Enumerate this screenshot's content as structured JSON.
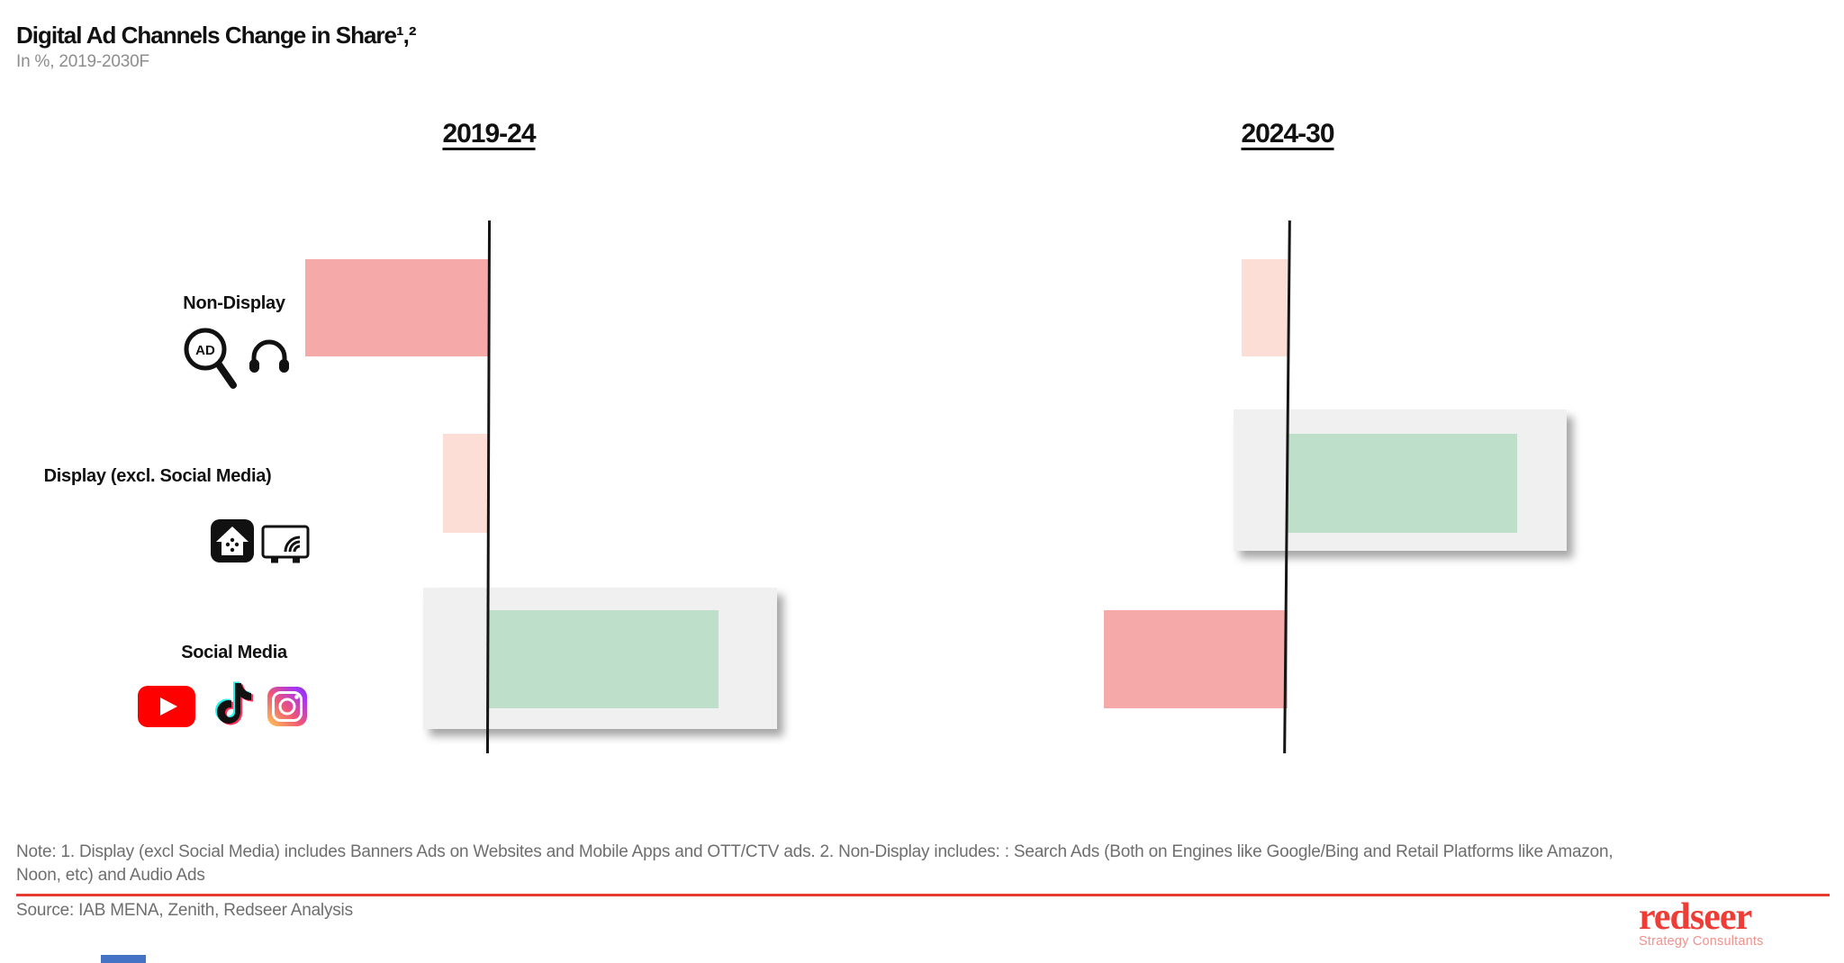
{
  "header": {
    "title": "Digital Ad Channels Change in Share¹,²",
    "subtitle": "In %, 2019-2030F"
  },
  "chart_data": {
    "type": "bar",
    "variant": "horizontal diverging bars, two period panels sharing category rows",
    "title": "Digital Ad Channels Change in Share¹,²",
    "subtitle_units": "In %, 2019-2030F",
    "categories": [
      "Non-Display",
      "Display (excl. Social Media)",
      "Social Media"
    ],
    "category_icons": [
      [
        "search-ad-icon",
        "headphones-icon"
      ],
      [
        "website-app-icon",
        "ott-ctv-tv-icon"
      ],
      [
        "youtube-icon",
        "tiktok-icon",
        "instagram-icon"
      ]
    ],
    "panels": [
      {
        "label": "2019-24",
        "values": [
          -8,
          -2,
          10
        ],
        "highlighted_row": "Social Media"
      },
      {
        "label": "2024-30",
        "values": [
          -2,
          10,
          -8
        ],
        "highlighted_row": "Display (excl. Social Media)"
      }
    ],
    "value_axis": {
      "numeric_labels_shown": false,
      "values_estimated_from_bar_lengths": true
    },
    "legend_shown": false,
    "colors": {
      "decline_large": "#F6A9A9",
      "decline_small": "#FCDED6",
      "growth": "#BEDFC9",
      "highlight_card": "#F0F0F0",
      "axis": "#151515"
    }
  },
  "footnote": {
    "lines": [
      "Note: 1. Display (excl Social Media) includes Banners Ads on Websites and Mobile Apps and OTT/CTV ads. 2. Non-Display includes: : Search Ads (Both on Engines like Google/Bing and Retail Platforms like Amazon,",
      "Noon, etc) and Audio Ads"
    ]
  },
  "source": "Source: IAB MENA, Zenith, Redseer Analysis",
  "logo": {
    "name": "redseer",
    "tagline": "Strategy Consultants"
  }
}
